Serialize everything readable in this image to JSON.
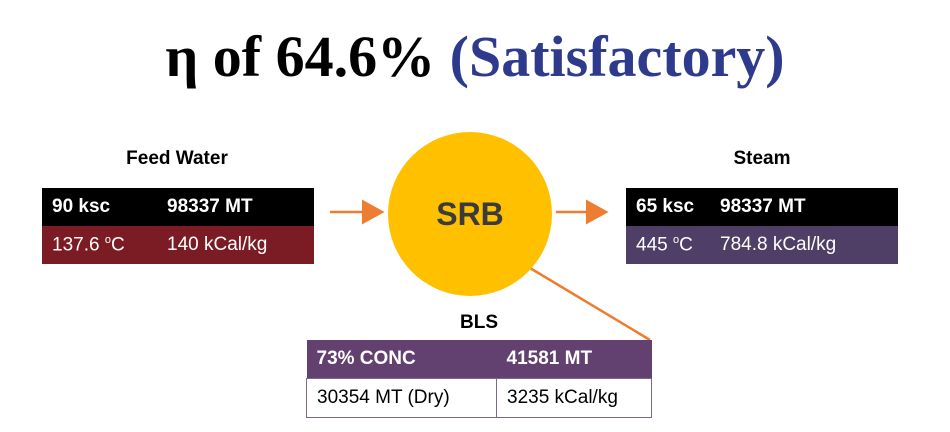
{
  "title": {
    "prefix": "η of 64.6%",
    "status": "(Satisfactory)",
    "status_color": "#2e3a8c"
  },
  "center": {
    "label": "SRB",
    "color": "#ffc000"
  },
  "feed_water": {
    "heading": "Feed Water",
    "pressure": "90 ksc",
    "quantity": "98337 MT",
    "temp_value": "137.6",
    "temp_unit_prefix": "o",
    "temp_unit": "C",
    "enthalpy": "140 kCal/kg"
  },
  "steam": {
    "heading": "Steam",
    "pressure": "65 ksc",
    "quantity": "98337 MT",
    "temp_value": "445",
    "temp_unit_prefix": "o",
    "temp_unit": "C",
    "enthalpy": "784.8 kCal/kg"
  },
  "bls": {
    "heading": "BLS",
    "concentration": "73% CONC",
    "quantity": "41581 MT",
    "dry_quantity": "30354 MT (Dry)",
    "enthalpy": "3235 kCal/kg"
  },
  "colors": {
    "arrow": "#ed7d31",
    "feed_temp_row": "#7b1c25",
    "steam_temp_row": "#4f3e66",
    "bls_head_row": "#62406f"
  }
}
